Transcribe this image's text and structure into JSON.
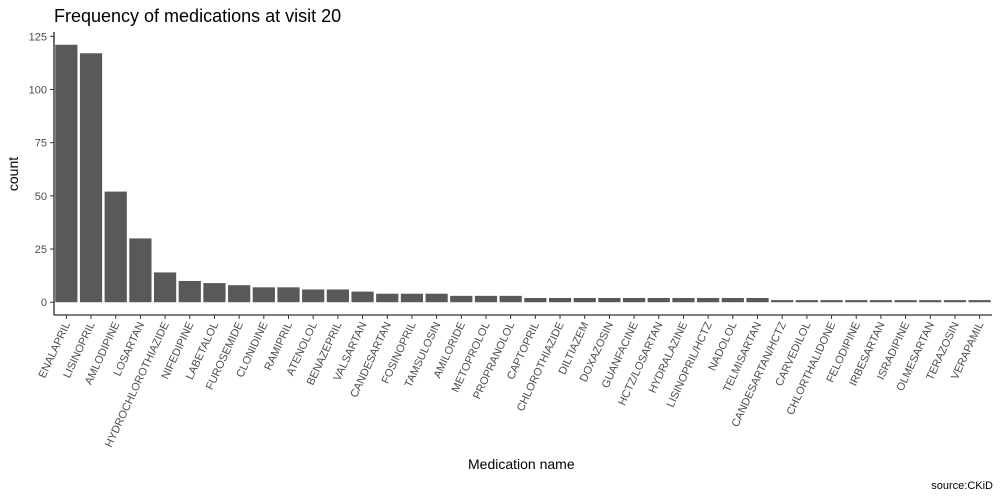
{
  "chart_data": {
    "type": "bar",
    "title": "Frequency of medications at visit 20",
    "xlabel": "Medication name",
    "ylabel": "count",
    "caption": "source:CKiD",
    "ylim": [
      -6,
      127
    ],
    "yticks": [
      0,
      25,
      50,
      75,
      100,
      125
    ],
    "grid": false,
    "bar_color": "#595959",
    "axis_color": "#000000",
    "categories": [
      "ENALAPRIL",
      "LISINOPRIL",
      "AMLODIPINE",
      "LOSARTAN",
      "HYDROCHLOROTHIAZIDE",
      "NIFEDIPINE",
      "LABETALOL",
      "FUROSEMIDE",
      "CLONIDINE",
      "RAMIPRIL",
      "ATENOLOL",
      "BENAZEPRIL",
      "VALSARTAN",
      "CANDESARTAN",
      "FOSINOPRIL",
      "TAMSULOSIN",
      "AMILORIDE",
      "METOPROLOL",
      "PROPRANOLOL",
      "CAPTOPRIL",
      "CHLOROTHIAZIDE",
      "DILTIAZEM",
      "DOXAZOSIN",
      "GUANFACINE",
      "HCTZ/LOSARTAN",
      "HYDRALAZINE",
      "LISINOPRIL/HCTZ",
      "NADOLOL",
      "TELMISARTAN",
      "CANDESARTAN/HCTZ",
      "CARVEDILOL",
      "CHLORTHALIDONE",
      "FELODIPINE",
      "IRBESARTAN",
      "ISRADIPINE",
      "OLMESARTAN",
      "TERAZOSIN",
      "VERAPAMIL"
    ],
    "values": [
      121,
      117,
      52,
      30,
      14,
      10,
      9,
      8,
      7,
      7,
      6,
      6,
      5,
      4,
      4,
      4,
      3,
      3,
      3,
      2,
      2,
      2,
      2,
      2,
      2,
      2,
      2,
      2,
      2,
      1,
      1,
      1,
      1,
      1,
      1,
      1,
      1,
      1
    ]
  }
}
